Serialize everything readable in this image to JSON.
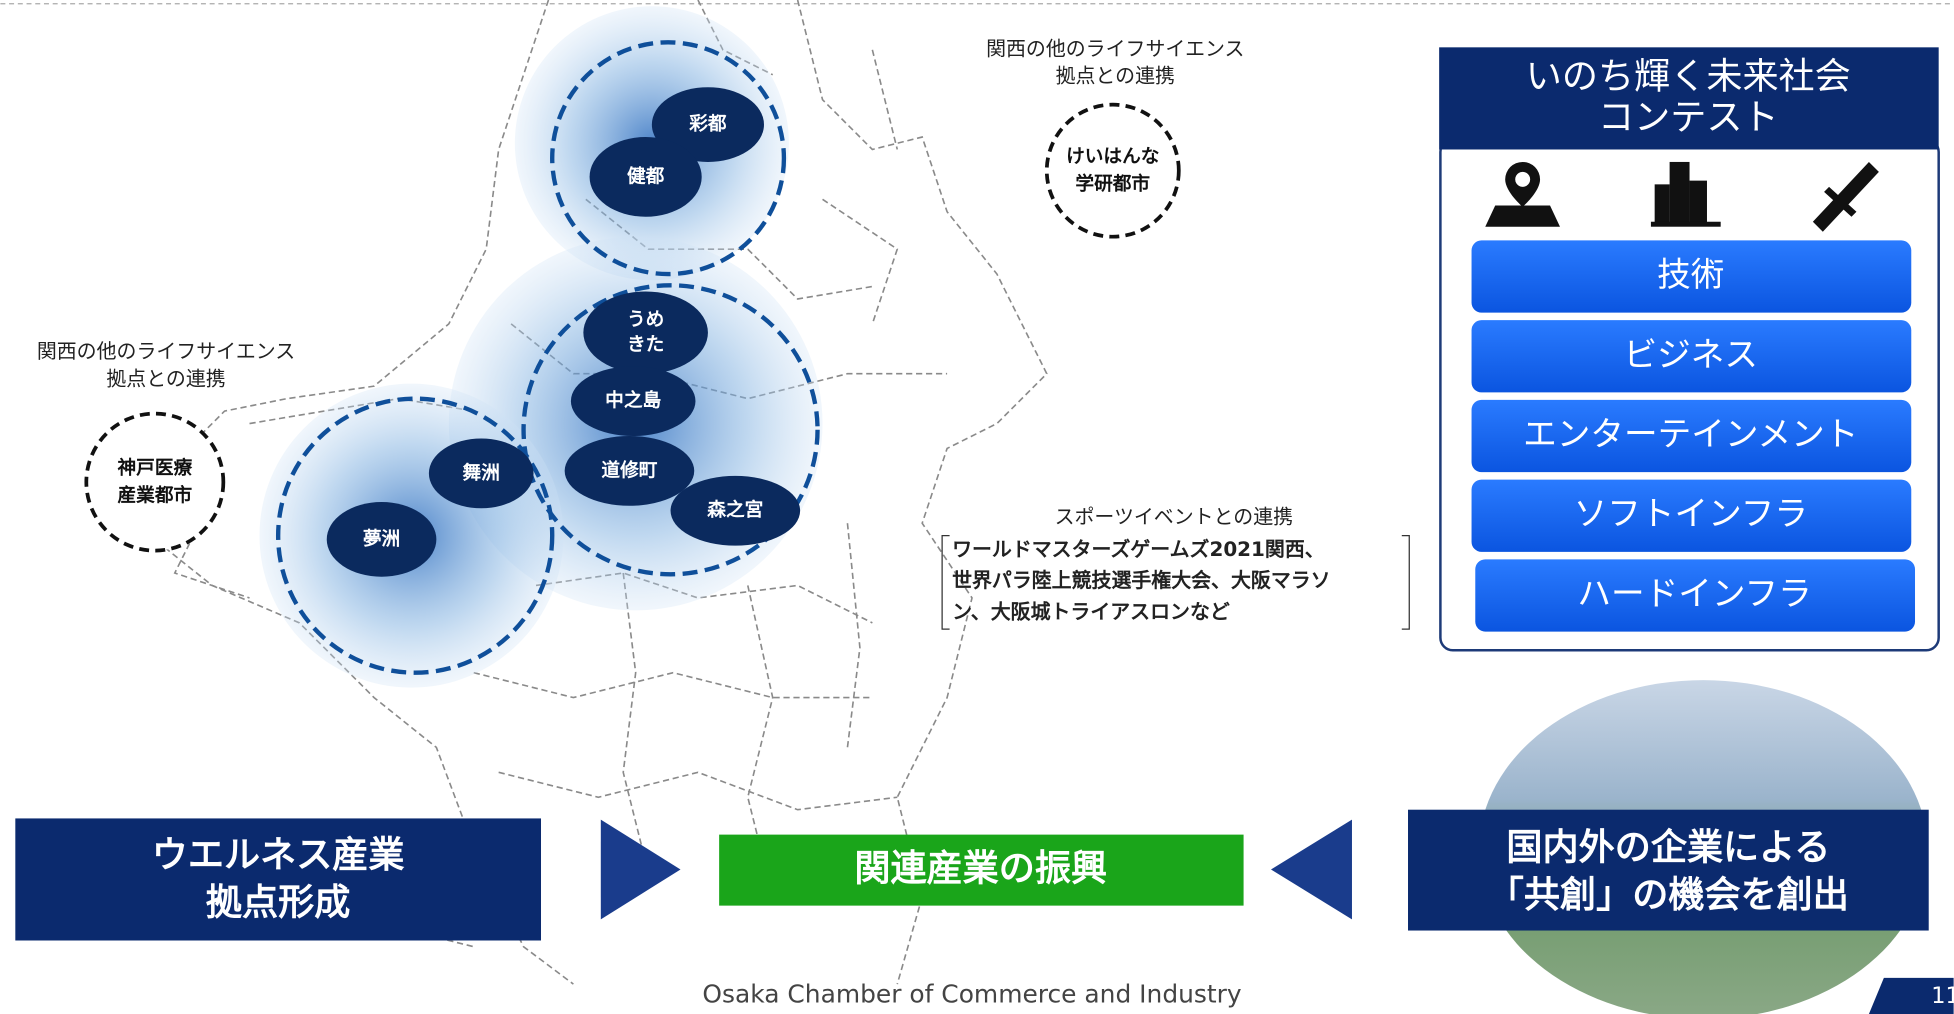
{
  "notes": {
    "north": [
      "関西の他のライフサイエンス",
      "拠点との連携"
    ],
    "west": [
      "関西の他のライフサイエンス",
      "拠点との連携"
    ],
    "sports": {
      "title": "スポーツイベントとの連携",
      "lines": [
        "ワールドマスターズゲームズ2021関西、",
        "世界パラ陸上競技選手権大会、大阪マラソ",
        "ン、大阪城トライアスロンなど"
      ]
    }
  },
  "sites": {
    "saito": "彩都",
    "kento": "健都",
    "umekita": [
      "うめ",
      "きた"
    ],
    "nakanoshima": "中之島",
    "doshomachi": "道修町",
    "morinomiya": "森之宮",
    "maishima": "舞洲",
    "yumeshima": "夢洲",
    "kobe": [
      "神戸医療",
      "産業都市"
    ],
    "keihanna": [
      "けいはんな",
      "学研都市"
    ]
  },
  "contest": {
    "title": [
      "いのち輝く未来社会",
      "コンテスト"
    ],
    "items": [
      "技術",
      "ビジネス",
      "エンターテインメント",
      "ソフトインフラ",
      "ハードインフラ"
    ]
  },
  "bottom": {
    "left": [
      "ウエルネス産業",
      "拠点形成"
    ],
    "center": "関連産業の振興",
    "right": [
      "国内外の企業による",
      "「共創」の機会を創出"
    ]
  },
  "footer": {
    "org": "Osaka Chamber of Commerce and Industry",
    "page": "11"
  }
}
